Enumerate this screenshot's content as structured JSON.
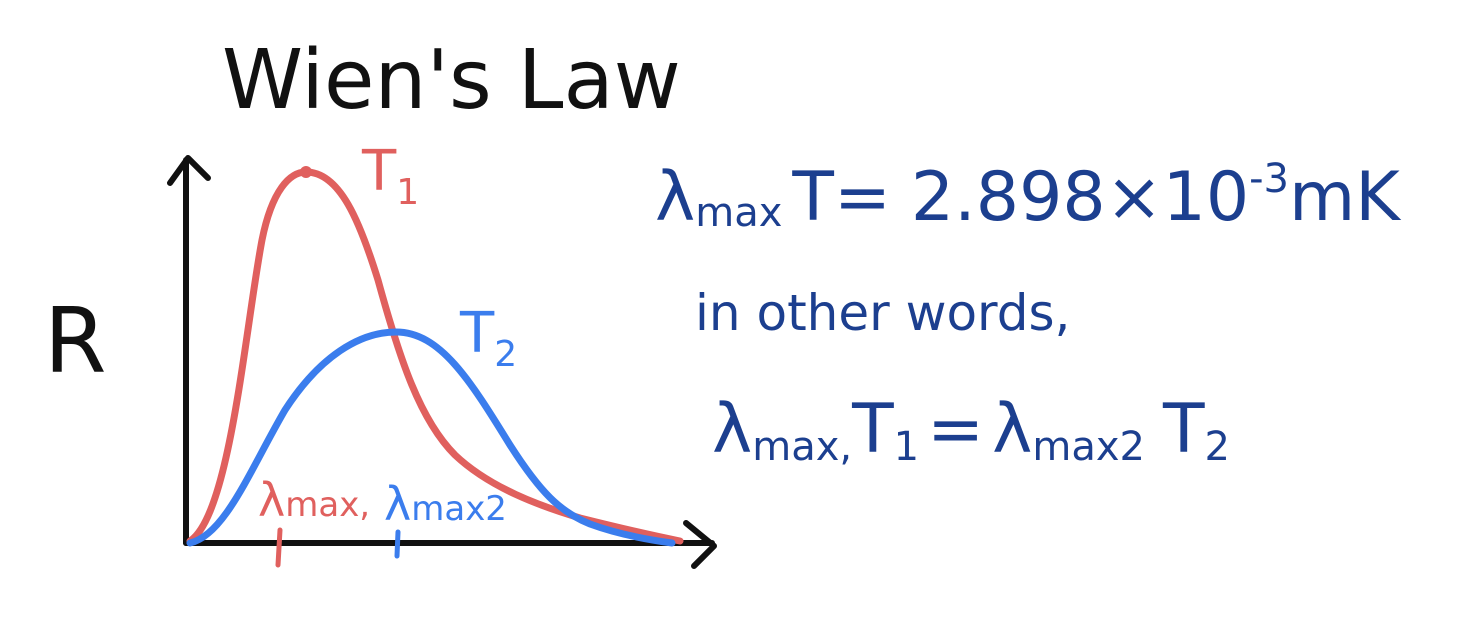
{
  "title": "Wien's Law",
  "y_axis_label": "R",
  "curves": [
    {
      "label": "T",
      "subscript": "1",
      "color": "#e0605e"
    },
    {
      "label": "T",
      "subscript": "2",
      "color": "#3b7ded"
    }
  ],
  "tick_labels": {
    "red": {
      "lambda": "λ",
      "text": "max,",
      "color": "#e0605e"
    },
    "blue": {
      "lambda": "λ",
      "text": "max2",
      "color": "#3b7ded"
    }
  },
  "equation": {
    "lambda": "λ",
    "lambda_sub": "max",
    "t_equals": "T=",
    "value": "2.898×10",
    "exponent": "-3",
    "unit": "mK",
    "color": "#1c3f8f"
  },
  "note": "in other words,",
  "relation": {
    "lambda1": "λ",
    "lambda1_sub": "max,",
    "t1": "T",
    "t1_sub": "1",
    "equals": "=",
    "lambda2": "λ",
    "lambda2_sub": "max2",
    "t2": "T",
    "t2_sub": "2"
  },
  "colors": {
    "axis": "#111111",
    "red": "#e0605e",
    "blue": "#3b7ded",
    "ink_blue": "#1c3f8f"
  }
}
